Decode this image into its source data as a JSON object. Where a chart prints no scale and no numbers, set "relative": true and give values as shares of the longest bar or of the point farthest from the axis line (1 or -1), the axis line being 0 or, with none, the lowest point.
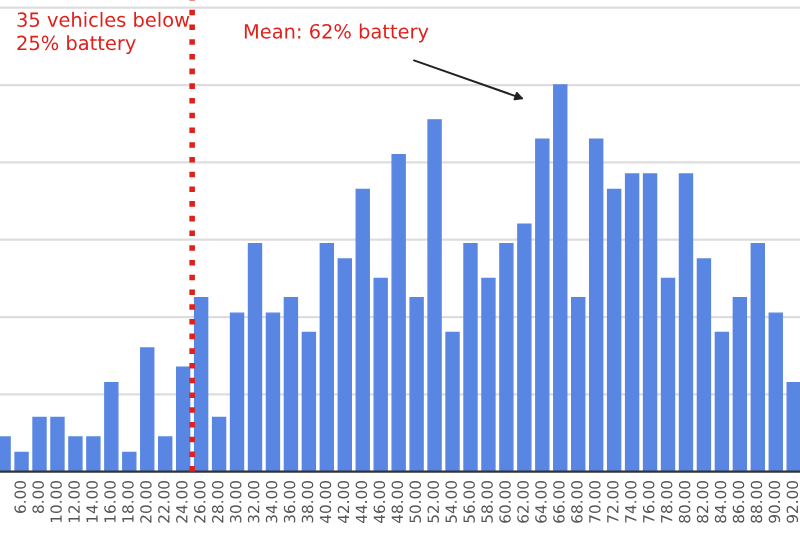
{
  "chart_data": {
    "type": "bar",
    "relative": true,
    "grid": "y",
    "color": "#5a86e3",
    "x": [
      4,
      6,
      8,
      10,
      12,
      14,
      16,
      18,
      20,
      22,
      24,
      26,
      28,
      30,
      32,
      34,
      36,
      38,
      40,
      42,
      44,
      46,
      48,
      50,
      52,
      54,
      56,
      58,
      60,
      62,
      64,
      66,
      68,
      70,
      72,
      74,
      76,
      78,
      80,
      82,
      84,
      86,
      88,
      90,
      92
    ],
    "values": [
      0.09,
      0.05,
      0.14,
      0.14,
      0.09,
      0.09,
      0.23,
      0.05,
      0.32,
      0.09,
      0.27,
      0.45,
      0.14,
      0.41,
      0.59,
      0.41,
      0.45,
      0.36,
      0.59,
      0.55,
      0.73,
      0.5,
      0.82,
      0.45,
      0.91,
      0.36,
      0.59,
      0.5,
      0.59,
      0.64,
      0.86,
      1,
      0.45,
      0.86,
      0.73,
      0.77,
      0.77,
      0.5,
      0.77,
      0.55,
      0.36,
      0.45,
      0.59,
      0.41,
      0.23
    ],
    "xlim": [
      3.6,
      92.7
    ],
    "xticks": [
      {
        "value": 6,
        "label": "6.00"
      },
      {
        "value": 8,
        "label": "8.00"
      },
      {
        "value": 10,
        "label": "10.00"
      },
      {
        "value": 12,
        "label": "12.00"
      },
      {
        "value": 14,
        "label": "14.00"
      },
      {
        "value": 16,
        "label": "16.00"
      },
      {
        "value": 18,
        "label": "18.00"
      },
      {
        "value": 20,
        "label": "20.00"
      },
      {
        "value": 22,
        "label": "22.00"
      },
      {
        "value": 24,
        "label": "24.00"
      },
      {
        "value": 26,
        "label": "26.00"
      },
      {
        "value": 28,
        "label": "28.00"
      },
      {
        "value": 30,
        "label": "30.00"
      },
      {
        "value": 32,
        "label": "32.00"
      },
      {
        "value": 34,
        "label": "34.00"
      },
      {
        "value": 36,
        "label": "36.00"
      },
      {
        "value": 38,
        "label": "38.00"
      },
      {
        "value": 40,
        "label": "40.00"
      },
      {
        "value": 42,
        "label": "42.00"
      },
      {
        "value": 44,
        "label": "44.00"
      },
      {
        "value": 46,
        "label": "46.00"
      },
      {
        "value": 48,
        "label": "48.00"
      },
      {
        "value": 50,
        "label": "50.00"
      },
      {
        "value": 52,
        "label": "52.00"
      },
      {
        "value": 54,
        "label": "54.00"
      },
      {
        "value": 56,
        "label": "56.00"
      },
      {
        "value": 58,
        "label": "58.00"
      },
      {
        "value": 60,
        "label": "60.00"
      },
      {
        "value": 62,
        "label": "62.00"
      },
      {
        "value": 64,
        "label": "64.00"
      },
      {
        "value": 66,
        "label": "66.00"
      },
      {
        "value": 68,
        "label": "68.00"
      },
      {
        "value": 70,
        "label": "70.00"
      },
      {
        "value": 72,
        "label": "72.00"
      },
      {
        "value": 74,
        "label": "74.00"
      },
      {
        "value": 76,
        "label": "76.00"
      },
      {
        "value": 78,
        "label": "78.00"
      },
      {
        "value": 80,
        "label": "80.00"
      },
      {
        "value": 82,
        "label": "82.00"
      },
      {
        "value": 84,
        "label": "84.00"
      },
      {
        "value": 86,
        "label": "86.00"
      },
      {
        "value": 88,
        "label": "88.00"
      },
      {
        "value": 90,
        "label": "90.00"
      },
      {
        "value": 92,
        "label": "92.00"
      }
    ],
    "tick_labels": "x",
    "ref_lines": [
      {
        "axis": "x",
        "value": 25,
        "color": "#e0201b",
        "line_style": "dotted"
      }
    ],
    "annotations": [
      "35 vehicles below\n25% battery",
      "Mean: 62% battery"
    ]
  }
}
